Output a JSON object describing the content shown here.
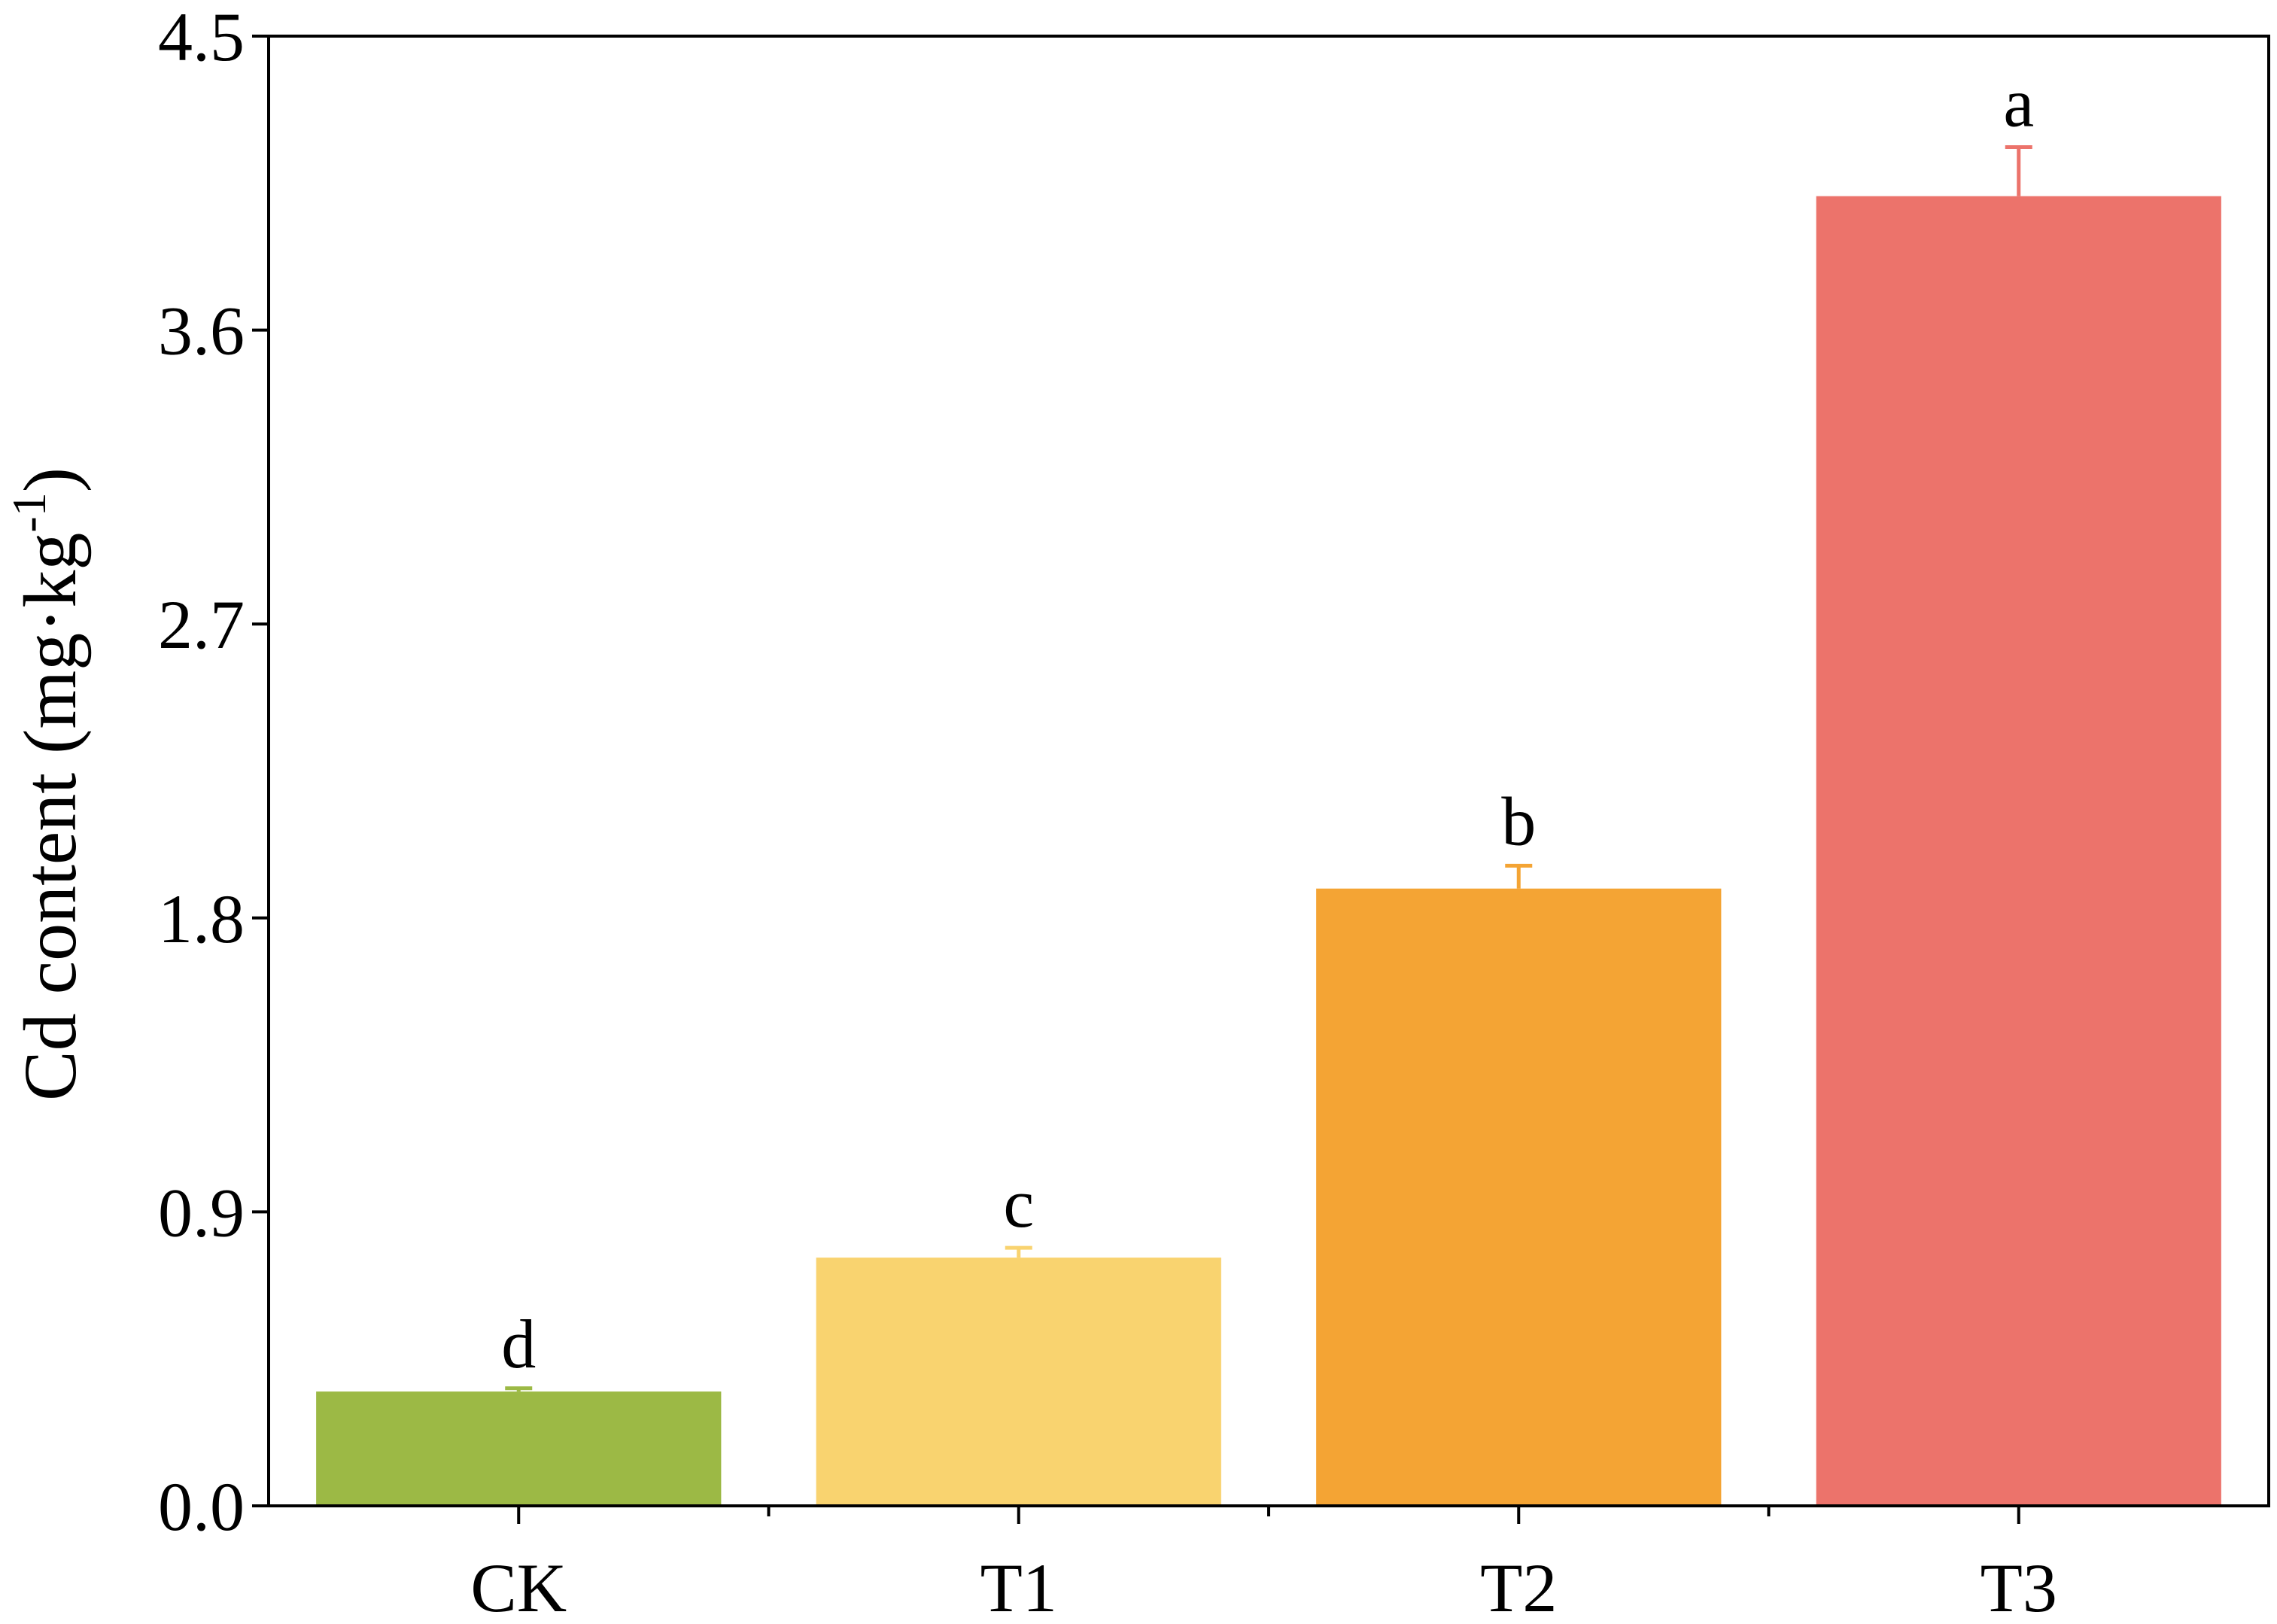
{
  "chart_data": {
    "type": "bar",
    "ylabel": {
      "text": "Cd content (mg·kg",
      "superscript": "-1",
      "close": ")"
    },
    "categories": [
      "CK",
      "T1",
      "T2",
      "T3"
    ],
    "values": [
      0.35,
      0.76,
      1.89,
      4.01
    ],
    "errors": [
      0.01,
      0.03,
      0.07,
      0.15
    ],
    "significance": [
      "d",
      "c",
      "b",
      "a"
    ],
    "colors": [
      "#9cb945",
      "#f9d36f",
      "#f4a434",
      "#ec736b"
    ],
    "ylim": [
      0,
      4.5
    ],
    "yticks": [
      {
        "value": 0,
        "label": "0.0"
      },
      0.9,
      1.8,
      2.7,
      3.6,
      4.5
    ],
    "grid": false
  }
}
